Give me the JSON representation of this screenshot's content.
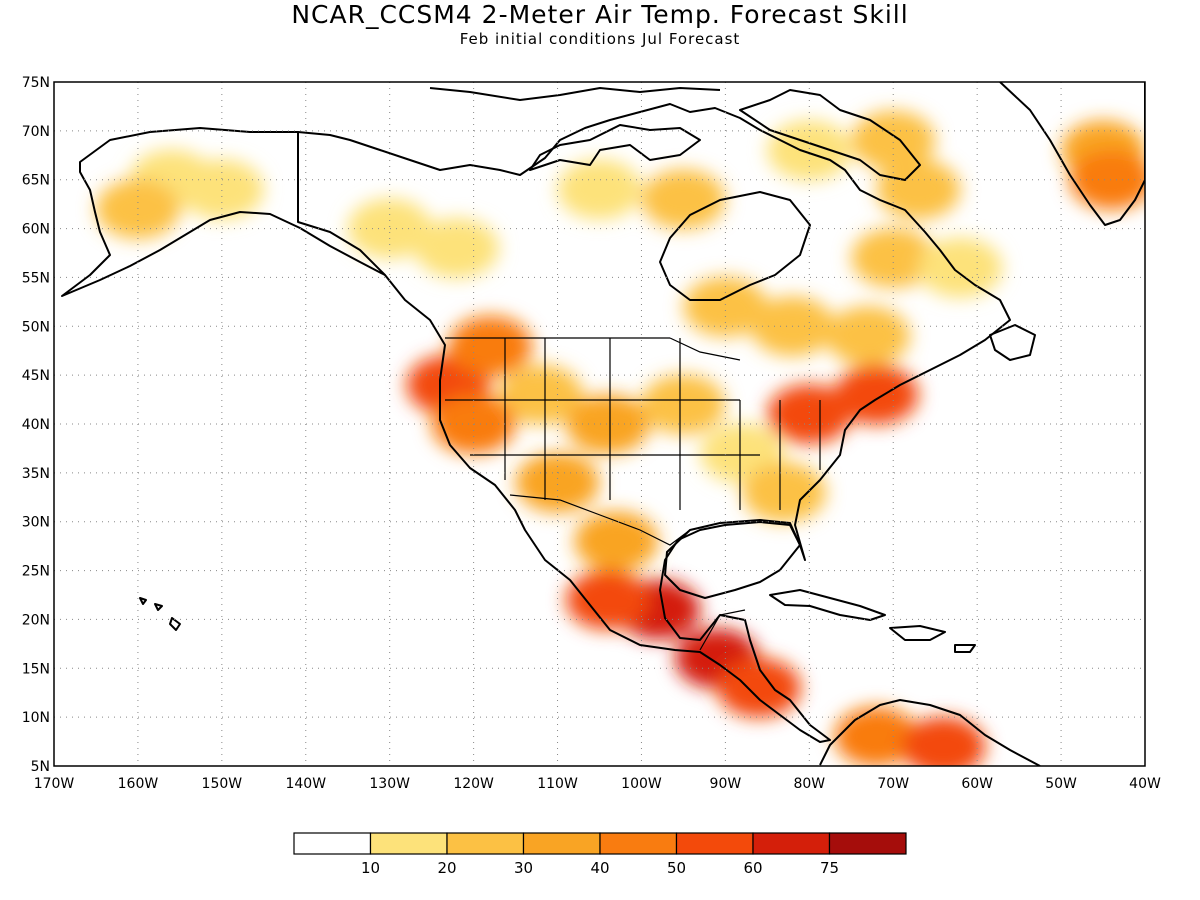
{
  "title": "NCAR_CCSM4 2-Meter Air Temp. Forecast Skill",
  "subtitle": "Feb initial conditions  Jul Forecast",
  "map": {
    "projection": "lat-lon",
    "lon_range": [
      -170,
      -40
    ],
    "lat_range": [
      5,
      75
    ],
    "lat_ticks": [
      "5N",
      "10N",
      "15N",
      "20N",
      "25N",
      "30N",
      "35N",
      "40N",
      "45N",
      "50N",
      "55N",
      "60N",
      "65N",
      "70N",
      "75N"
    ],
    "lon_ticks": [
      "170W",
      "160W",
      "150W",
      "140W",
      "130W",
      "120W",
      "110W",
      "100W",
      "90W",
      "80W",
      "70W",
      "60W",
      "50W",
      "40W"
    ],
    "grid": "dotted",
    "border_color": "#000000"
  },
  "legend": {
    "levels": [
      "10",
      "20",
      "30",
      "40",
      "50",
      "60",
      "75"
    ],
    "colors": [
      "#ffffff",
      "#fde27a",
      "#fcc144",
      "#f9a424",
      "#f97c10",
      "#f34a0b",
      "#d41f0a",
      "#a50d0b"
    ]
  },
  "regions": [
    {
      "lon": -156,
      "lat": 65,
      "level": 1
    },
    {
      "lon": -150,
      "lat": 64,
      "level": 1
    },
    {
      "lon": -160,
      "lat": 62,
      "level": 2
    },
    {
      "lon": -130,
      "lat": 60,
      "level": 1
    },
    {
      "lon": -122,
      "lat": 58,
      "level": 1
    },
    {
      "lon": -105,
      "lat": 64,
      "level": 1
    },
    {
      "lon": -95,
      "lat": 63,
      "level": 2
    },
    {
      "lon": -80,
      "lat": 68,
      "level": 1
    },
    {
      "lon": -70,
      "lat": 69,
      "level": 2
    },
    {
      "lon": -67,
      "lat": 64,
      "level": 2
    },
    {
      "lon": -70,
      "lat": 57,
      "level": 2
    },
    {
      "lon": -62,
      "lat": 56,
      "level": 1
    },
    {
      "lon": -45,
      "lat": 68,
      "level": 3
    },
    {
      "lon": -44,
      "lat": 65,
      "level": 4
    },
    {
      "lon": -90,
      "lat": 52,
      "level": 2
    },
    {
      "lon": -82,
      "lat": 50,
      "level": 2
    },
    {
      "lon": -73,
      "lat": 49,
      "level": 2
    },
    {
      "lon": -123,
      "lat": 44,
      "level": 5
    },
    {
      "lon": -118,
      "lat": 48,
      "level": 4
    },
    {
      "lon": -112,
      "lat": 43,
      "level": 2
    },
    {
      "lon": -120,
      "lat": 40,
      "level": 4
    },
    {
      "lon": -104,
      "lat": 40,
      "level": 3
    },
    {
      "lon": -110,
      "lat": 34,
      "level": 3
    },
    {
      "lon": -95,
      "lat": 42,
      "level": 2
    },
    {
      "lon": -88,
      "lat": 37,
      "level": 1
    },
    {
      "lon": -80,
      "lat": 41,
      "level": 5
    },
    {
      "lon": -72,
      "lat": 43,
      "level": 5
    },
    {
      "lon": -83,
      "lat": 33,
      "level": 2
    },
    {
      "lon": -103,
      "lat": 28,
      "level": 3
    },
    {
      "lon": -98,
      "lat": 21,
      "level": 6
    },
    {
      "lon": -104,
      "lat": 22,
      "level": 5
    },
    {
      "lon": -91,
      "lat": 16,
      "level": 6
    },
    {
      "lon": -86,
      "lat": 13,
      "level": 5
    },
    {
      "lon": -72,
      "lat": 8,
      "level": 4
    },
    {
      "lon": -64,
      "lat": 7,
      "level": 5
    }
  ]
}
